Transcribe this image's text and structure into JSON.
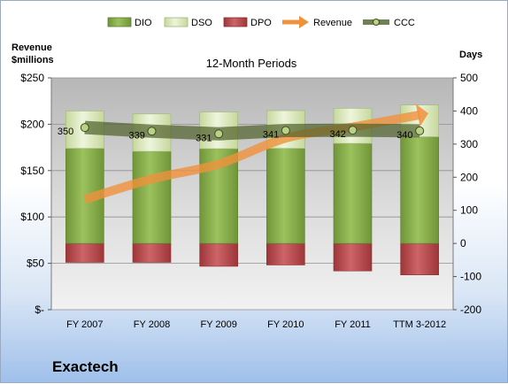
{
  "company": "Exactech",
  "colors": {
    "DIO": "#82a84a",
    "DSO": "#d8e7b4",
    "DPO": "#b5474a",
    "Revenue": "#f0913c",
    "CCC": "#4e5f2a"
  },
  "chart_data": {
    "type": "bar",
    "title": "12-Month Periods",
    "ylabel_left": "Revenue\n$millions",
    "ylabel_right": "Days",
    "categories": [
      "FY 2007",
      "FY 2008",
      "FY 2009",
      "FY 2010",
      "FY 2011",
      "TTM 3-2012"
    ],
    "ylim_left": [
      0,
      250
    ],
    "ylim_right": [
      -200,
      500
    ],
    "yticks_left": [
      "$-",
      "$50",
      "$100",
      "$150",
      "$200",
      "$250"
    ],
    "yticks_right": [
      "-200",
      "-100",
      "0",
      "100",
      "200",
      "300",
      "400",
      "500"
    ],
    "grid": true,
    "legend_position": "top",
    "series": [
      {
        "name": "DIO",
        "type": "bar",
        "axis": "right",
        "values": [
          287,
          278,
          286,
          287,
          302,
          322
        ]
      },
      {
        "name": "DSO",
        "type": "bar",
        "axis": "right",
        "values": [
          113,
          113,
          111,
          114,
          106,
          96
        ]
      },
      {
        "name": "DPO",
        "type": "bar",
        "axis": "right",
        "values": [
          -57,
          -57,
          -69,
          -65,
          -83,
          -95
        ]
      },
      {
        "name": "Revenue",
        "type": "arrow-line",
        "axis": "left",
        "values": [
          119,
          141,
          157,
          185,
          197,
          210
        ]
      },
      {
        "name": "CCC",
        "type": "line",
        "axis": "right",
        "values": [
          350,
          339,
          331,
          341,
          342,
          340
        ]
      }
    ],
    "data_labels": [
      "350",
      "339",
      "331",
      "341",
      "342",
      "340"
    ]
  }
}
